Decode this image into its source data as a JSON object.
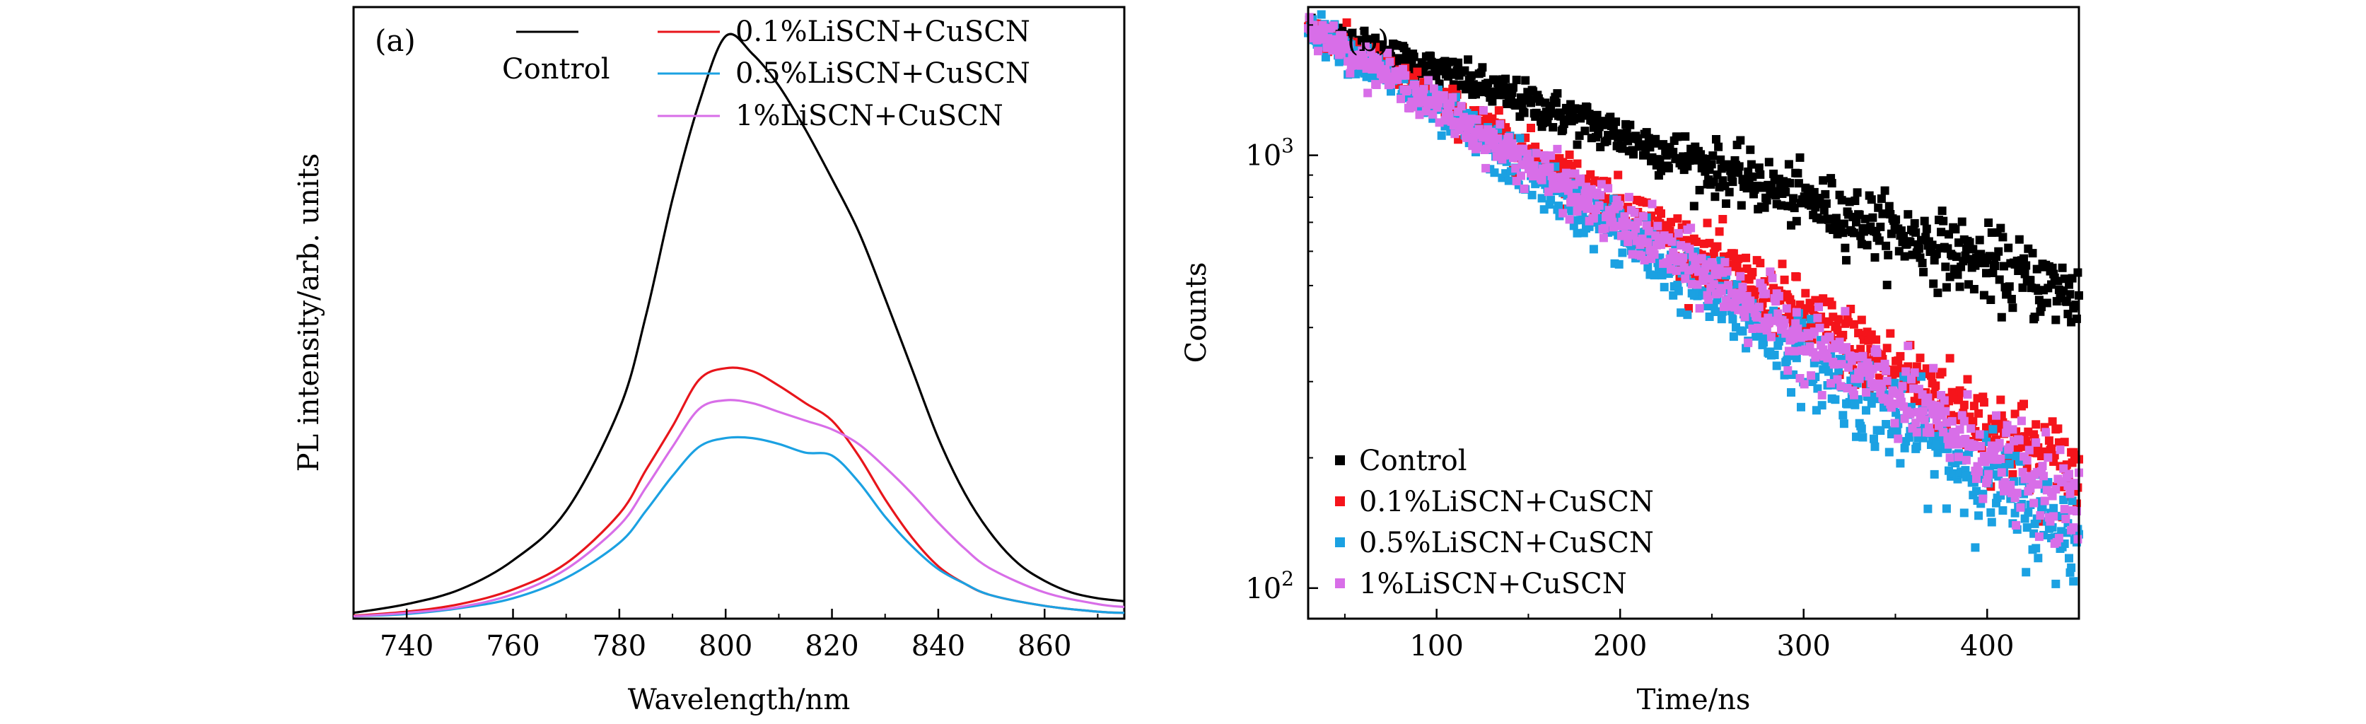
{
  "chart_data": [
    {
      "id": "a",
      "type": "line",
      "panel_label": "(a)",
      "xlabel": "Wavelength/nm",
      "ylabel": "PL intensity/arb. units",
      "xlim": [
        730,
        875
      ],
      "ylim": [
        0,
        1.05
      ],
      "y_ticks_shown": false,
      "x_ticks": [
        "740",
        "760",
        "780",
        "800",
        "820",
        "840",
        "860"
      ],
      "legend_position": "top",
      "series": [
        {
          "name": "Control",
          "color": "#000000",
          "x": [
            730,
            740,
            750,
            760,
            770,
            780,
            785,
            790,
            795,
            800,
            805,
            810,
            815,
            820,
            825,
            830,
            835,
            840,
            845,
            850,
            855,
            860,
            865,
            870,
            875
          ],
          "y": [
            0.01,
            0.025,
            0.05,
            0.1,
            0.185,
            0.36,
            0.52,
            0.72,
            0.885,
            1.0,
            0.97,
            0.915,
            0.84,
            0.755,
            0.665,
            0.55,
            0.43,
            0.31,
            0.215,
            0.145,
            0.095,
            0.065,
            0.045,
            0.035,
            0.03
          ]
        },
        {
          "name": "0.1%LiSCN+CuSCN",
          "color": "#e8151b",
          "x": [
            730,
            740,
            750,
            760,
            770,
            780,
            785,
            790,
            795,
            800,
            805,
            810,
            815,
            820,
            825,
            830,
            835,
            840,
            845,
            850,
            860,
            870,
            875
          ],
          "y": [
            0.005,
            0.012,
            0.025,
            0.05,
            0.095,
            0.18,
            0.255,
            0.33,
            0.41,
            0.43,
            0.425,
            0.4,
            0.37,
            0.34,
            0.28,
            0.205,
            0.14,
            0.09,
            0.06,
            0.04,
            0.022,
            0.012,
            0.01
          ]
        },
        {
          "name": "0.5%LiSCN+CuSCN",
          "color": "#1ba1e2",
          "x": [
            730,
            740,
            750,
            760,
            770,
            780,
            785,
            790,
            795,
            800,
            805,
            810,
            815,
            820,
            825,
            830,
            835,
            840,
            845,
            850,
            860,
            870,
            875
          ],
          "y": [
            0.004,
            0.008,
            0.018,
            0.035,
            0.07,
            0.13,
            0.185,
            0.245,
            0.295,
            0.31,
            0.31,
            0.3,
            0.285,
            0.28,
            0.235,
            0.175,
            0.125,
            0.085,
            0.06,
            0.04,
            0.022,
            0.012,
            0.01
          ]
        },
        {
          "name": "1%LiSCN+CuSCN",
          "color": "#d86ee8",
          "x": [
            730,
            740,
            750,
            760,
            770,
            780,
            785,
            790,
            795,
            800,
            805,
            810,
            815,
            820,
            825,
            830,
            835,
            840,
            845,
            850,
            860,
            870,
            875
          ],
          "y": [
            0.004,
            0.01,
            0.02,
            0.042,
            0.085,
            0.16,
            0.225,
            0.295,
            0.36,
            0.375,
            0.37,
            0.355,
            0.34,
            0.325,
            0.3,
            0.26,
            0.215,
            0.165,
            0.12,
            0.085,
            0.045,
            0.025,
            0.02
          ]
        }
      ]
    },
    {
      "id": "b",
      "type": "scatter",
      "panel_label": "(b)",
      "xlabel": "Time/ns",
      "ylabel": "Counts",
      "xlim": [
        30,
        450
      ],
      "ylim": [
        85,
        2200
      ],
      "y_scale": "log",
      "x_ticks": [
        "100",
        "200",
        "300",
        "400"
      ],
      "y_ticks": [
        {
          "value": 1000,
          "base": "10",
          "exp": "3"
        },
        {
          "value": 100,
          "base": "10",
          "exp": "2"
        }
      ],
      "legend_position": "bottom-left",
      "series": [
        {
          "name": "Control",
          "color": "#000000",
          "x_range": [
            30,
            450
          ],
          "y_start": 2000,
          "y_end": 470,
          "noise": 0.06
        },
        {
          "name": "0.1%LiSCN+CuSCN",
          "color": "#f5141b",
          "x_range": [
            30,
            450
          ],
          "y_start": 2000,
          "y_end": 180,
          "noise": 0.07
        },
        {
          "name": "0.5%LiSCN+CuSCN",
          "color": "#1ba1e2",
          "x_range": [
            30,
            450
          ],
          "y_start": 2000,
          "y_end": 128,
          "noise": 0.08
        },
        {
          "name": "1%LiSCN+CuSCN",
          "color": "#d86ee8",
          "x_range": [
            30,
            450
          ],
          "y_start": 2000,
          "y_end": 150,
          "noise": 0.07
        }
      ]
    }
  ]
}
